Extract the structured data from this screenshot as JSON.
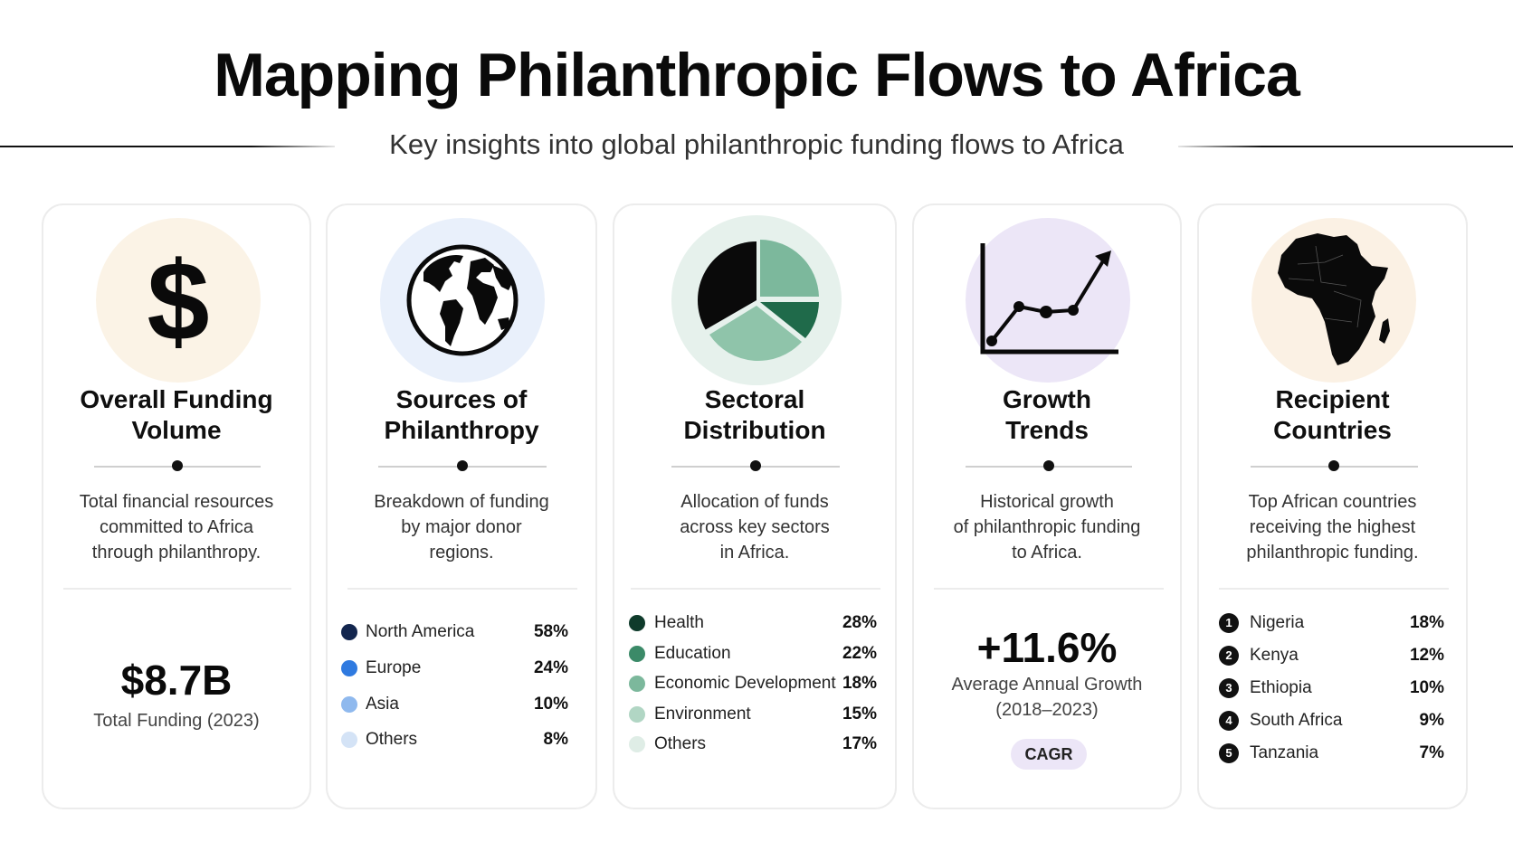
{
  "header": {
    "title": "Mapping Philanthropic Flows to Africa",
    "subtitle": "Key insights into global philanthropic funding flows to Africa"
  },
  "cards": {
    "funding": {
      "icon": "dollar-icon",
      "bg": "#fbf3e6",
      "title_line1": "Overall Funding",
      "title_line2": "Volume",
      "desc_line1": "Total financial resources",
      "desc_line2": "committed to Africa",
      "desc_line3": "through philanthropy.",
      "value": "$8.7B",
      "caption": "Total Funding (2023)"
    },
    "sources": {
      "icon": "globe-icon",
      "bg": "#e9f0fb",
      "title_line1": "Sources of",
      "title_line2": "Philanthropy",
      "desc_line1": "Breakdown of funding",
      "desc_line2": "by major donor",
      "desc_line3": "regions.",
      "items": [
        {
          "label": "North America",
          "pct": "58%",
          "color": "#13264e"
        },
        {
          "label": "Europe",
          "pct": "24%",
          "color": "#2f7ae0"
        },
        {
          "label": "Asia",
          "pct": "10%",
          "color": "#8fb9ee"
        },
        {
          "label": "Others",
          "pct": "8%",
          "color": "#d4e3f6"
        }
      ]
    },
    "sectors": {
      "icon": "pie-chart-icon",
      "bg": "#e6f1ec",
      "title_line1": "Sectoral",
      "title_line2": "Distribution",
      "desc_line1": "Allocation of funds",
      "desc_line2": "across key sectors",
      "desc_line3": "in Africa.",
      "items": [
        {
          "label": "Health",
          "pct": "28%",
          "color": "#0f3b2b"
        },
        {
          "label": "Education",
          "pct": "22%",
          "color": "#3b8a68"
        },
        {
          "label": "Economic Development",
          "pct": "18%",
          "color": "#7cb89c"
        },
        {
          "label": "Environment",
          "pct": "15%",
          "color": "#b1d6c4"
        },
        {
          "label": "Others",
          "pct": "17%",
          "color": "#dfede6"
        }
      ]
    },
    "growth": {
      "icon": "line-chart-icon",
      "bg": "#ece6f7",
      "title_line1": "Growth",
      "title_line2": "Trends",
      "desc_line1": "Historical growth",
      "desc_line2": "of philanthropic funding",
      "desc_line3": "to Africa.",
      "value": "+11.6%",
      "caption_line1": "Average Annual Growth",
      "caption_line2": "(2018–2023)",
      "badge": "CAGR"
    },
    "recipients": {
      "icon": "africa-map-icon",
      "bg": "#fbf1e4",
      "title_line1": "Recipient",
      "title_line2": "Countries",
      "desc_line1": "Top African countries",
      "desc_line2": "receiving the highest",
      "desc_line3": "philanthropic funding.",
      "items": [
        {
          "rank": "1",
          "label": "Nigeria",
          "pct": "18%"
        },
        {
          "rank": "2",
          "label": "Kenya",
          "pct": "12%"
        },
        {
          "rank": "3",
          "label": "Ethiopia",
          "pct": "10%"
        },
        {
          "rank": "4",
          "label": "South Africa",
          "pct": "9%"
        },
        {
          "rank": "5",
          "label": "Tanzania",
          "pct": "7%"
        }
      ]
    }
  }
}
